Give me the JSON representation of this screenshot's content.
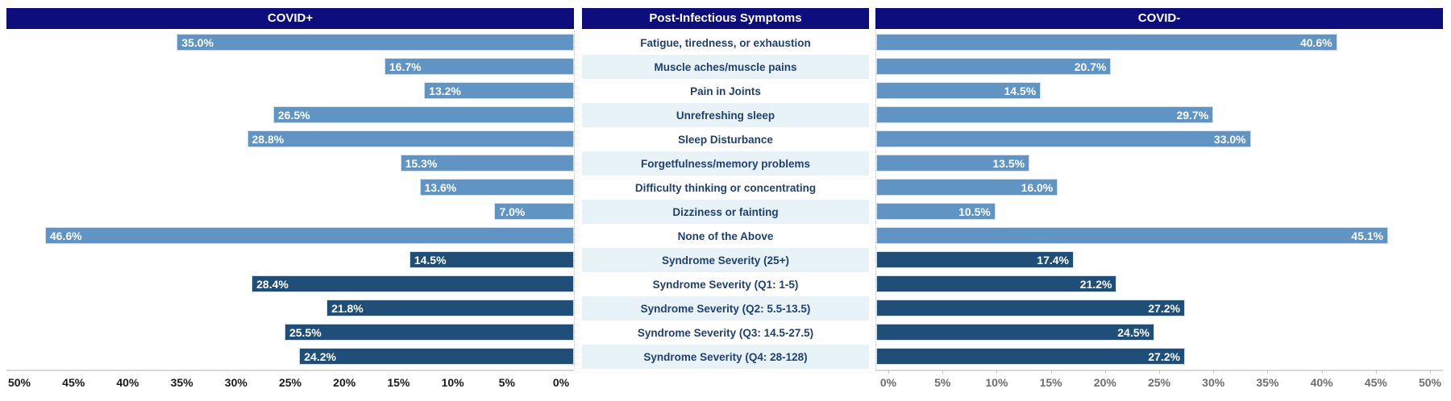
{
  "panels": {
    "left_header": "COVID+",
    "center_header": "Post-Infectious Symptoms",
    "right_header": "COVID-"
  },
  "colors": {
    "header_bg": "#0d0d7e",
    "header_text": "#ffffff",
    "symptom_bar": "#5f94c5",
    "severity_bar": "#1f4e79",
    "bar_value_text": "#ffffff",
    "category_text": "#1f4077",
    "stripe_bg": "#e8f3f8",
    "axis_left_text": "#1a1a1a",
    "axis_right_text": "#6e6e6e",
    "axis_line": "#d8d8d8"
  },
  "chart_data": {
    "type": "bar",
    "subtype": "butterfly-diverging",
    "title": "Post-Infectious Symptoms: COVID+ vs COVID-",
    "categories": [
      "Fatigue, tiredness, or exhaustion",
      "Muscle aches/muscle pains",
      "Pain in Joints",
      "Unrefreshing sleep",
      "Sleep Disturbance",
      "Forgetfulness/memory problems",
      "Difficulty thinking or concentrating",
      "Dizziness or fainting",
      "None of the Above",
      "Syndrome Severity (25+)",
      "Syndrome Severity (Q1: 1-5)",
      "Syndrome Severity (Q2: 5.5-13.5)",
      "Syndrome Severity (Q3: 14.5-27.5)",
      "Syndrome Severity (Q4: 28-128)"
    ],
    "series": [
      {
        "name": "COVID+",
        "side": "left",
        "values": [
          35.0,
          16.7,
          13.2,
          26.5,
          28.8,
          15.3,
          13.6,
          7.0,
          46.6,
          14.5,
          28.4,
          21.8,
          25.5,
          24.2
        ]
      },
      {
        "name": "COVID-",
        "side": "right",
        "values": [
          40.6,
          20.7,
          14.5,
          29.7,
          33.0,
          13.5,
          16.0,
          10.5,
          45.1,
          17.4,
          21.2,
          27.2,
          24.5,
          27.2
        ]
      }
    ],
    "severity_start_index": 9,
    "value_label_format": "one-decimal-percent",
    "axis": {
      "min": 0,
      "max": 50,
      "step": 5,
      "left_ticks": [
        "50%",
        "45%",
        "40%",
        "35%",
        "30%",
        "25%",
        "20%",
        "15%",
        "10%",
        "5%",
        "0%"
      ],
      "right_ticks": [
        "0%",
        "5%",
        "10%",
        "15%",
        "20%",
        "25%",
        "30%",
        "35%",
        "40%",
        "45%",
        "50%"
      ]
    },
    "grid": false,
    "legend_position": "none"
  }
}
